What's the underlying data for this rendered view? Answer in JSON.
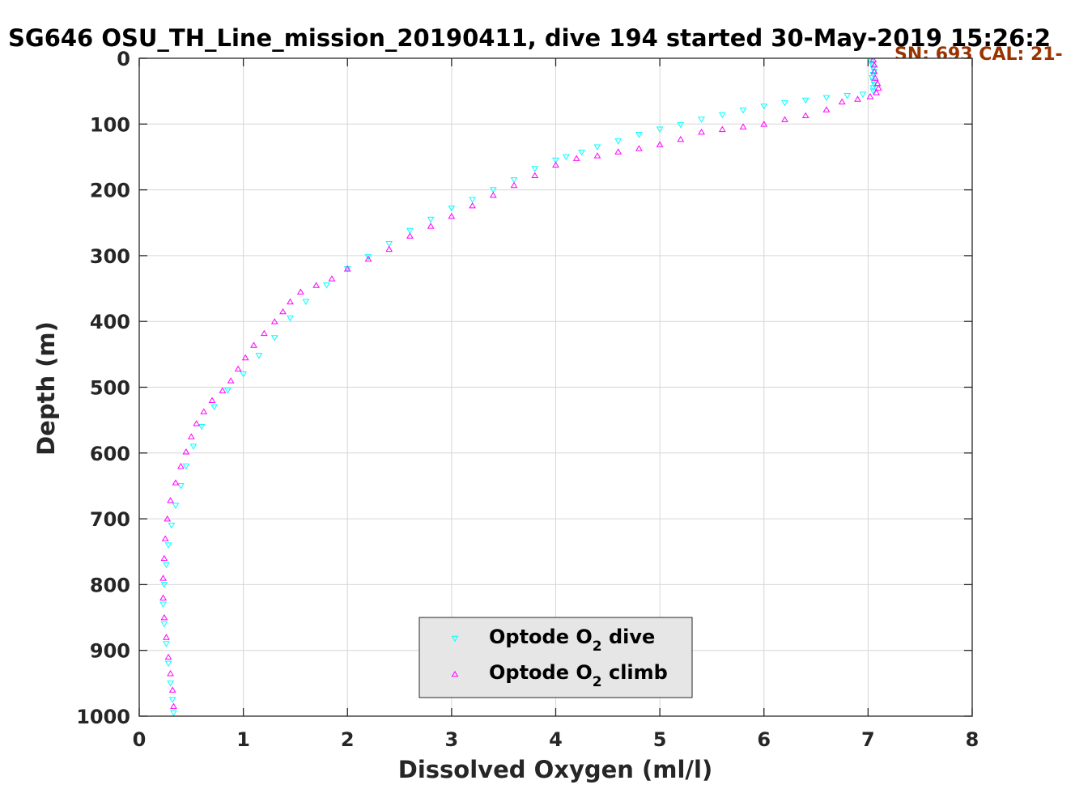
{
  "chart_data": {
    "type": "scatter",
    "title": "SG646 OSU_TH_Line_mission_20190411, dive 194 started 30-May-2019 15:26:2",
    "annotation": "SN: 693  CAL: 21-",
    "xlabel": "Dissolved Oxygen (ml/l)",
    "ylabel": "Depth (m)",
    "xlim": [
      0,
      8
    ],
    "ylim": [
      0,
      1000
    ],
    "y_reversed": true,
    "grid": true,
    "legend_position": "bottom-center",
    "x_ticks": [
      "0",
      "1",
      "2",
      "3",
      "4",
      "5",
      "6",
      "7",
      "8"
    ],
    "y_ticks": [
      "0",
      "100",
      "200",
      "300",
      "400",
      "500",
      "600",
      "700",
      "800",
      "900",
      "1000"
    ],
    "colors": {
      "dive": "#00ffff",
      "climb": "#ff00ff",
      "annotation": "#993300"
    },
    "legend": [
      {
        "pre": "Optode O",
        "sub": "2",
        "post": " dive",
        "marker": "triangle-down",
        "color": "#00ffff"
      },
      {
        "pre": "Optode O",
        "sub": "2",
        "post": " climb",
        "marker": "triangle-up",
        "color": "#ff00ff"
      }
    ],
    "series": [
      {
        "name": "Optode O2 dive",
        "marker": "triangle-down",
        "color": "#00ffff",
        "points": [
          [
            7.02,
            2
          ],
          [
            7.03,
            5
          ],
          [
            7.04,
            10
          ],
          [
            7.05,
            15
          ],
          [
            7.06,
            20
          ],
          [
            7.05,
            25
          ],
          [
            7.04,
            30
          ],
          [
            7.05,
            35
          ],
          [
            7.06,
            40
          ],
          [
            7.05,
            45
          ],
          [
            7.05,
            50
          ],
          [
            6.95,
            55
          ],
          [
            6.8,
            57
          ],
          [
            6.6,
            60
          ],
          [
            6.4,
            64
          ],
          [
            6.2,
            68
          ],
          [
            6.0,
            73
          ],
          [
            5.8,
            79
          ],
          [
            5.6,
            86
          ],
          [
            5.4,
            93
          ],
          [
            5.2,
            101
          ],
          [
            5.0,
            108
          ],
          [
            4.8,
            116
          ],
          [
            4.6,
            126
          ],
          [
            4.4,
            135
          ],
          [
            4.25,
            143
          ],
          [
            4.1,
            150
          ],
          [
            4.0,
            155
          ],
          [
            3.8,
            168
          ],
          [
            3.6,
            185
          ],
          [
            3.4,
            200
          ],
          [
            3.2,
            215
          ],
          [
            3.0,
            228
          ],
          [
            2.8,
            245
          ],
          [
            2.6,
            262
          ],
          [
            2.4,
            282
          ],
          [
            2.2,
            302
          ],
          [
            2.0,
            320
          ],
          [
            1.8,
            345
          ],
          [
            1.6,
            370
          ],
          [
            1.45,
            395
          ],
          [
            1.3,
            425
          ],
          [
            1.15,
            452
          ],
          [
            1.0,
            480
          ],
          [
            0.85,
            505
          ],
          [
            0.72,
            530
          ],
          [
            0.6,
            560
          ],
          [
            0.52,
            590
          ],
          [
            0.45,
            620
          ],
          [
            0.4,
            650
          ],
          [
            0.35,
            680
          ],
          [
            0.31,
            710
          ],
          [
            0.28,
            740
          ],
          [
            0.26,
            770
          ],
          [
            0.24,
            800
          ],
          [
            0.23,
            830
          ],
          [
            0.24,
            860
          ],
          [
            0.26,
            890
          ],
          [
            0.28,
            920
          ],
          [
            0.3,
            950
          ],
          [
            0.32,
            975
          ],
          [
            0.33,
            995
          ]
        ]
      },
      {
        "name": "Optode O2 climb",
        "marker": "triangle-up",
        "color": "#ff00ff",
        "points": [
          [
            4.4,
            148
          ],
          [
            4.6,
            142
          ],
          [
            4.8,
            137
          ],
          [
            5.0,
            131
          ],
          [
            5.2,
            123
          ],
          [
            5.4,
            112
          ],
          [
            5.6,
            108
          ],
          [
            5.8,
            104
          ],
          [
            6.0,
            100
          ],
          [
            6.2,
            93
          ],
          [
            6.4,
            87
          ],
          [
            6.6,
            78
          ],
          [
            6.75,
            66
          ],
          [
            6.9,
            62
          ],
          [
            7.02,
            58
          ],
          [
            7.08,
            52
          ],
          [
            7.1,
            45
          ],
          [
            7.09,
            38
          ],
          [
            7.07,
            30
          ],
          [
            7.06,
            20
          ],
          [
            7.06,
            10
          ],
          [
            7.05,
            2
          ],
          [
            4.2,
            152
          ],
          [
            4.0,
            162
          ],
          [
            3.8,
            178
          ],
          [
            3.6,
            193
          ],
          [
            3.4,
            208
          ],
          [
            3.2,
            224
          ],
          [
            3.0,
            240
          ],
          [
            2.8,
            255
          ],
          [
            2.6,
            270
          ],
          [
            2.4,
            290
          ],
          [
            2.2,
            305
          ],
          [
            2.0,
            320
          ],
          [
            1.85,
            335
          ],
          [
            1.7,
            345
          ],
          [
            1.55,
            355
          ],
          [
            1.45,
            370
          ],
          [
            1.38,
            385
          ],
          [
            1.3,
            400
          ],
          [
            1.2,
            418
          ],
          [
            1.1,
            436
          ],
          [
            1.02,
            455
          ],
          [
            0.95,
            472
          ],
          [
            0.88,
            490
          ],
          [
            0.8,
            505
          ],
          [
            0.7,
            520
          ],
          [
            0.62,
            537
          ],
          [
            0.55,
            555
          ],
          [
            0.5,
            575
          ],
          [
            0.45,
            598
          ],
          [
            0.4,
            620
          ],
          [
            0.35,
            645
          ],
          [
            0.3,
            672
          ],
          [
            0.27,
            700
          ],
          [
            0.25,
            730
          ],
          [
            0.24,
            760
          ],
          [
            0.23,
            790
          ],
          [
            0.23,
            820
          ],
          [
            0.24,
            850
          ],
          [
            0.26,
            880
          ],
          [
            0.28,
            910
          ],
          [
            0.3,
            935
          ],
          [
            0.32,
            960
          ],
          [
            0.33,
            985
          ]
        ]
      }
    ]
  }
}
